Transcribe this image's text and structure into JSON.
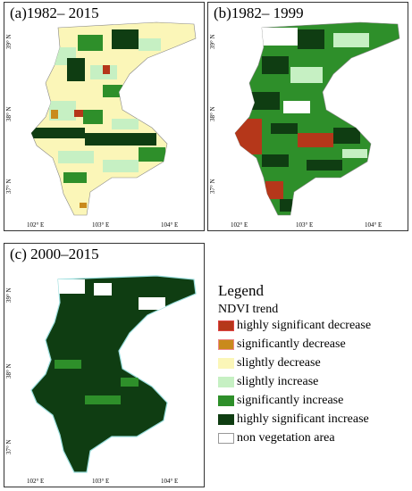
{
  "panels": [
    {
      "title": "(a)1982– 2015",
      "lat_labels": [
        "39° N",
        "38° N",
        "37° N"
      ],
      "lon_labels": [
        "102° E",
        "103° E",
        "104° E"
      ]
    },
    {
      "title": "(b)1982– 1999",
      "lat_labels": [
        "39° N",
        "38° N",
        "37° N"
      ],
      "lon_labels": [
        "102° E",
        "103° E",
        "104° E"
      ]
    },
    {
      "title": "(c) 2000–2015",
      "lat_labels": [
        "39° N",
        "38° N",
        "37° N"
      ],
      "lon_labels": [
        "102° E",
        "103° E",
        "104° E"
      ]
    }
  ],
  "legend": {
    "title": "Legend",
    "subtitle": "NDVI trend",
    "items": [
      {
        "label": "highly significant decrease",
        "color": "#b5371a"
      },
      {
        "label": "significantly decrease",
        "color": "#c98a1c"
      },
      {
        "label": "slightly decrease",
        "color": "#fbf6b8"
      },
      {
        "label": "slightly increase",
        "color": "#c6f0c3"
      },
      {
        "label": "significantly increase",
        "color": "#2e8f2a"
      },
      {
        "label": "highly significant increase",
        "color": "#0f3d12"
      },
      {
        "label": "non vegetation area",
        "color": "#ffffff"
      }
    ]
  }
}
